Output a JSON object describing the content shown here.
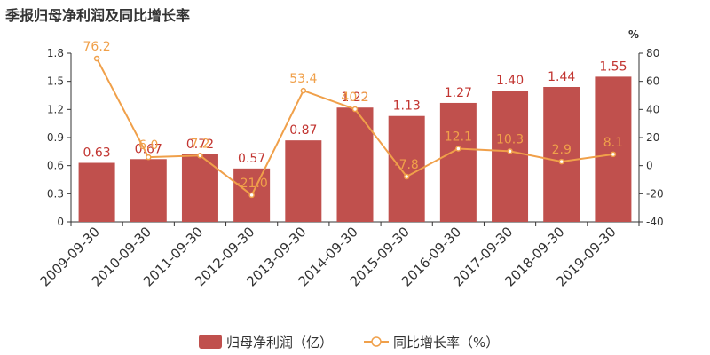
{
  "title": "季报归母净利润及同比增长率",
  "chart_data": {
    "type": "bar",
    "categories": [
      "2009-09-30",
      "2010-09-30",
      "2011-09-30",
      "2012-09-30",
      "2013-09-30",
      "2014-09-30",
      "2015-09-30",
      "2016-09-30",
      "2017-09-30",
      "2018-09-30",
      "2019-09-30"
    ],
    "series": [
      {
        "name": "归母净利润（亿）",
        "type": "bar",
        "axis": "left",
        "values": [
          0.63,
          0.67,
          0.72,
          0.57,
          0.87,
          1.22,
          1.13,
          1.27,
          1.4,
          1.44,
          1.55
        ],
        "labels": [
          "0.63",
          "0.67",
          "0.72",
          "0.57",
          "0.87",
          "1.22",
          "1.13",
          "1.27",
          "1.40",
          "1.44",
          "1.55"
        ]
      },
      {
        "name": "同比增长率（%）",
        "type": "line",
        "axis": "right",
        "values": [
          76.2,
          6.0,
          7.2,
          -21.0,
          53.4,
          40.2,
          -7.8,
          12.1,
          10.3,
          2.9,
          8.1
        ],
        "labels": [
          "76.2",
          "6.0",
          "7.2",
          "-21.0",
          "53.4",
          "40.2",
          "-7.8",
          "12.1",
          "10.3",
          "2.9",
          "8.1"
        ]
      }
    ],
    "y_left": {
      "ylim": [
        0,
        1.8
      ],
      "ticks": [
        "0",
        "0.3",
        "0.6",
        "0.9",
        "1.2",
        "1.5",
        "1.8"
      ]
    },
    "y_right": {
      "label": "%",
      "ylim": [
        -40,
        80
      ],
      "ticks": [
        "-40",
        "-20",
        "0",
        "20",
        "40",
        "60",
        "80"
      ]
    },
    "legend_position": "bottom-center",
    "colors": {
      "bar": "#c0504d",
      "line": "#f0a04a"
    }
  }
}
